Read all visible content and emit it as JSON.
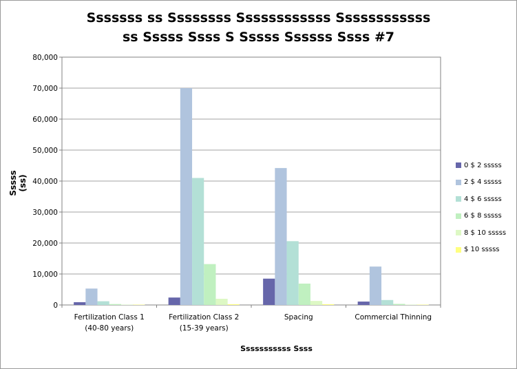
{
  "chart_data": {
    "type": "bar",
    "title_lines": [
      "Sssssss ss Ssssssss Ssssssssssss Ssssssssssss",
      "ss Sssss Ssss S Sssss Ssssss Ssss #7"
    ],
    "xlabel": "Sssssssssss Ssss",
    "ylabel": "Sssss (ss)",
    "ylim": [
      0,
      80000
    ],
    "yticks": [
      0,
      10000,
      20000,
      30000,
      40000,
      50000,
      60000,
      70000,
      80000
    ],
    "ytick_labels": [
      "0",
      "10,000",
      "20,000",
      "30,000",
      "40,000",
      "50,000",
      "60,000",
      "70,000",
      "80,000"
    ],
    "grid": true,
    "legend_position": "right",
    "categories": [
      [
        "Fertilization Class 1",
        "(40-80 years)"
      ],
      [
        "Fertilization Class 2",
        "(15-39 years)"
      ],
      [
        "Spacing"
      ],
      [
        "Commercial Thinning"
      ]
    ],
    "series": [
      {
        "name": "0 $ 2 sssss",
        "color": "#6666aa",
        "values": [
          900,
          2400,
          8500,
          1100
        ]
      },
      {
        "name": "2 $ 4 sssss",
        "color": "#b0c4de",
        "values": [
          5300,
          70000,
          44200,
          12400
        ]
      },
      {
        "name": "4 $ 6 sssss",
        "color": "#b3e0d6",
        "values": [
          1200,
          41000,
          20600,
          1600
        ]
      },
      {
        "name": "6 $ 8 sssss",
        "color": "#c0f0c0",
        "values": [
          300,
          13200,
          6900,
          350
        ]
      },
      {
        "name": "8 $ 10 sssss",
        "color": "#ddf8c4",
        "values": [
          50,
          2000,
          1300,
          100
        ]
      },
      {
        "name": "$ 10 sssss",
        "color": "#ffff80",
        "values": [
          20,
          250,
          250,
          30
        ]
      }
    ]
  }
}
